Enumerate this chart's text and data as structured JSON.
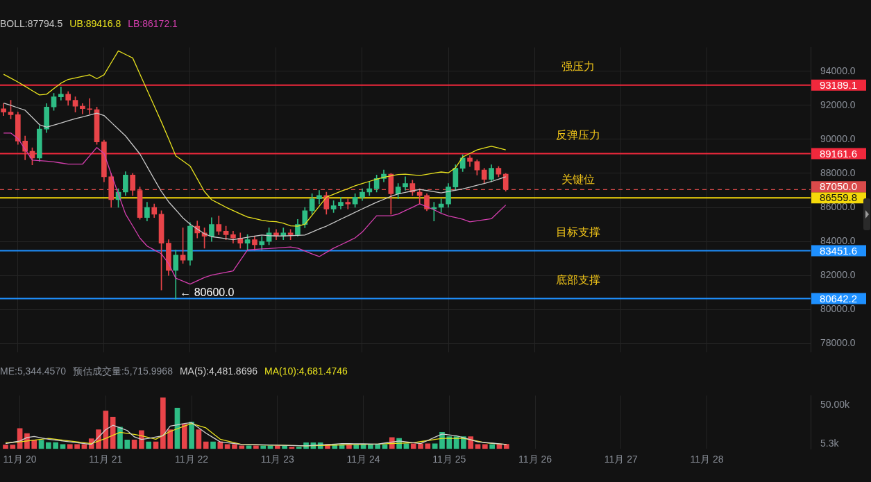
{
  "chart_data": [
    {
      "type": "candlestick",
      "legend": "top left",
      "grid": true,
      "tick_labels": "y",
      "categories": [
        null,
        null,
        null,
        null,
        null,
        null,
        null,
        null,
        null,
        null,
        null,
        null,
        null,
        null,
        null,
        null,
        null,
        null,
        null,
        null,
        null,
        null,
        null,
        null,
        null,
        null,
        null,
        null,
        null,
        null,
        null,
        null,
        null,
        null,
        null,
        null,
        null,
        null,
        null,
        null,
        null,
        null,
        null,
        null,
        null,
        null,
        null,
        null,
        null,
        null,
        null,
        null,
        null,
        null,
        null,
        null,
        null,
        null,
        null,
        null,
        null,
        null,
        null,
        null,
        null,
        null,
        null,
        null,
        null,
        null,
        null,
        null,
        null,
        null,
        null,
        null,
        null,
        null,
        null,
        null,
        null,
        null,
        null,
        null,
        null,
        null,
        null,
        null,
        null,
        null,
        null,
        null,
        null,
        null,
        null,
        null,
        null,
        null,
        null,
        null,
        null,
        null,
        null,
        null,
        null,
        null,
        null,
        null,
        null,
        null,
        null,
        null,
        null
      ],
      "ohlc": [
        [
          91800,
          92100,
          91400,
          91600
        ],
        [
          91600,
          92300,
          91200,
          91450
        ],
        [
          91450,
          91600,
          89700,
          89900
        ],
        [
          89900,
          90200,
          88800,
          89300
        ],
        [
          89300,
          89500,
          88500,
          88900
        ],
        [
          88900,
          90800,
          88700,
          90600
        ],
        [
          90600,
          92100,
          90400,
          91900
        ],
        [
          91900,
          92700,
          91700,
          92500
        ],
        [
          92500,
          93080,
          92300,
          92650
        ],
        [
          92650,
          92800,
          92000,
          92300
        ],
        [
          92300,
          92500,
          91600,
          91950
        ],
        [
          91950,
          92100,
          91500,
          91800
        ],
        [
          91800,
          92400,
          91500,
          91750
        ],
        [
          91750,
          91900,
          89700,
          89850
        ],
        [
          89850,
          89950,
          87500,
          87800
        ],
        [
          87800,
          88000,
          86000,
          86450
        ],
        [
          86450,
          87100,
          86000,
          86900
        ],
        [
          86900,
          88100,
          86700,
          87900
        ],
        [
          87900,
          88000,
          86700,
          87000
        ],
        [
          87000,
          87200,
          85300,
          85400
        ],
        [
          85400,
          86300,
          85200,
          86000
        ],
        [
          86000,
          86200,
          85400,
          85600
        ],
        [
          85600,
          85800,
          81140,
          83900
        ],
        [
          83900,
          84100,
          82000,
          82300
        ],
        [
          82300,
          83500,
          80600,
          83200
        ],
        [
          83200,
          84800,
          82700,
          82900
        ],
        [
          82900,
          85100,
          82600,
          84900
        ],
        [
          84900,
          85200,
          84200,
          84500
        ],
        [
          84500,
          84800,
          83600,
          84300
        ],
        [
          84300,
          85400,
          84000,
          85000
        ],
        [
          85000,
          85500,
          84400,
          84600
        ],
        [
          84600,
          84900,
          84100,
          84400
        ],
        [
          84400,
          84600,
          83900,
          84200
        ],
        [
          84200,
          84500,
          83600,
          83900
        ],
        [
          83900,
          84400,
          83500,
          84100
        ],
        [
          84100,
          84300,
          83500,
          83800
        ],
        [
          83800,
          84300,
          83500,
          84000
        ],
        [
          84000,
          84800,
          83800,
          84500
        ],
        [
          84500,
          84700,
          84100,
          84300
        ],
        [
          84300,
          84800,
          84100,
          84500
        ],
        [
          84500,
          84700,
          84100,
          84400
        ],
        [
          84400,
          85300,
          84300,
          85000
        ],
        [
          85000,
          86000,
          84800,
          85800
        ],
        [
          85800,
          86800,
          85600,
          86500
        ],
        [
          86500,
          87000,
          86200,
          86700
        ],
        [
          86700,
          86900,
          85600,
          85900
        ],
        [
          85900,
          86400,
          85700,
          86100
        ],
        [
          86100,
          86600,
          85900,
          86300
        ],
        [
          86300,
          86500,
          85900,
          86200
        ],
        [
          86200,
          86800,
          86000,
          86600
        ],
        [
          86600,
          87100,
          86400,
          86900
        ],
        [
          86900,
          87500,
          86700,
          87100
        ],
        [
          87100,
          87900,
          86900,
          87700
        ],
        [
          87700,
          88200,
          87500,
          87950
        ],
        [
          87950,
          88000,
          85600,
          86800
        ],
        [
          86800,
          87400,
          86500,
          87200
        ],
        [
          87200,
          87800,
          87000,
          87400
        ],
        [
          87400,
          87600,
          86700,
          86900
        ],
        [
          86900,
          87100,
          86200,
          86700
        ],
        [
          86700,
          86800,
          85800,
          85900
        ],
        [
          85900,
          86300,
          85200,
          86000
        ],
        [
          86000,
          86500,
          85700,
          86200
        ],
        [
          86200,
          87400,
          86000,
          87200
        ],
        [
          87200,
          88500,
          87000,
          88300
        ],
        [
          88300,
          89100,
          88100,
          88900
        ],
        [
          88900,
          89050,
          88400,
          88700
        ],
        [
          88700,
          88800,
          87900,
          88200
        ],
        [
          88200,
          88300,
          87400,
          87650
        ],
        [
          87650,
          88500,
          87500,
          88300
        ],
        [
          88300,
          88400,
          87800,
          87950
        ],
        [
          87950,
          88000,
          86950,
          87050
        ],
        null,
        null,
        null,
        null,
        null,
        null,
        null,
        null,
        null,
        null,
        null,
        null,
        null,
        null,
        null,
        null,
        null,
        null,
        null,
        null,
        null,
        null,
        null,
        null,
        null,
        null,
        null,
        null,
        null,
        null,
        null,
        null,
        null,
        null,
        null,
        null,
        null,
        null,
        null,
        null,
        null,
        null
      ],
      "colors": [
        "#e84449",
        "#e84449",
        "#e84449",
        "#e84449",
        "#e84449",
        "#2ebd85",
        "#2ebd85",
        "#2ebd85",
        "#2ebd85",
        "#e84449",
        "#e84449",
        "#e84449",
        "#e84449",
        "#e84449",
        "#e84449",
        "#e84449",
        "#2ebd85",
        "#2ebd85",
        "#e84449",
        "#e84449",
        "#2ebd85",
        "#e84449",
        "#e84449",
        "#e84449",
        "#2ebd85",
        "#e84449",
        "#2ebd85",
        "#e84449",
        "#e84449",
        "#2ebd85",
        "#e84449",
        "#e84449",
        "#e84449",
        "#e84449",
        "#2ebd85",
        "#e84449",
        "#2ebd85",
        "#2ebd85",
        "#e84449",
        "#2ebd85",
        "#e84449",
        "#2ebd85",
        "#2ebd85",
        "#2ebd85",
        "#2ebd85",
        "#e84449",
        "#2ebd85",
        "#2ebd85",
        "#e84449",
        "#2ebd85",
        "#2ebd85",
        "#2ebd85",
        "#2ebd85",
        "#2ebd85",
        "#e84449",
        "#2ebd85",
        "#2ebd85",
        "#e84449",
        "#e84449",
        "#e84449",
        "#2ebd85",
        "#2ebd85",
        "#2ebd85",
        "#2ebd85",
        "#2ebd85",
        "#e84449",
        "#e84449",
        "#e84449",
        "#2ebd85",
        "#e84449",
        "#e84449",
        null,
        null,
        null,
        null,
        null,
        null,
        null,
        null,
        null,
        null,
        null,
        null,
        null,
        null,
        null,
        null,
        null,
        null,
        null,
        null,
        null,
        null,
        null,
        null,
        null,
        null,
        null,
        null,
        null,
        null,
        null,
        null,
        null,
        null,
        null,
        null,
        null,
        null,
        null,
        null,
        null,
        null
      ],
      "series": [
        {
          "type": "line",
          "name": "BOLL:87794.5",
          "color": "#c8c8c8",
          "marker": "none",
          "values": [
            92130,
            92000,
            91850,
            91710,
            91290,
            90860,
            90710,
            90840,
            90960,
            91090,
            91210,
            91320,
            91430,
            91540,
            91400,
            91000,
            90600,
            90200,
            89670,
            89140,
            88400,
            87660,
            86930,
            86330,
            85860,
            85380,
            85010,
            84730,
            84450,
            84280,
            84220,
            84160,
            84100,
            84170,
            84240,
            84310,
            84380,
            84340,
            84320,
            84320,
            84340,
            84360,
            84380,
            84550,
            84730,
            84900,
            85100,
            85310,
            85510,
            85710,
            85910,
            86110,
            86300,
            86470,
            86650,
            86790,
            86880,
            86970,
            87060,
            86990,
            86920,
            86850,
            86930,
            87010,
            87090,
            87190,
            87300,
            87400,
            87520,
            87660,
            87800,
            null,
            null,
            null,
            null,
            null,
            null,
            null,
            null,
            null,
            null,
            null,
            null,
            null,
            null,
            null,
            null,
            null,
            null,
            null,
            null,
            null,
            null,
            null,
            null,
            null,
            null,
            null,
            null,
            null,
            null,
            null,
            null,
            null,
            null,
            null,
            null,
            null,
            null,
            null,
            null,
            null,
            null
          ]
        },
        {
          "type": "line",
          "name": "UB:89416.8",
          "color": "#e8e21e",
          "marker": "none",
          "values": [
            93820,
            93600,
            93370,
            93120,
            92860,
            92610,
            92650,
            92980,
            93300,
            93520,
            93610,
            93700,
            93790,
            93560,
            93790,
            94500,
            95200,
            94990,
            94780,
            93840,
            92900,
            91960,
            91020,
            90040,
            89030,
            88730,
            88430,
            87680,
            86930,
            86450,
            86230,
            86010,
            85810,
            85620,
            85440,
            85340,
            85240,
            85180,
            85160,
            85070,
            84920,
            84900,
            85010,
            85540,
            86070,
            86600,
            86770,
            86940,
            87100,
            87270,
            87400,
            87530,
            87660,
            87770,
            87850,
            87930,
            87950,
            87910,
            87870,
            87940,
            88010,
            88080,
            88030,
            88330,
            88960,
            89170,
            89380,
            89490,
            89590,
            89490,
            89380,
            null,
            null,
            null,
            null,
            null,
            null,
            null,
            null,
            null,
            null,
            null,
            null,
            null,
            null,
            null,
            null,
            null,
            null,
            null,
            null,
            null,
            null,
            null,
            null,
            null,
            null,
            null,
            null,
            null,
            null,
            null,
            null,
            null,
            null,
            null,
            null,
            null,
            null,
            null,
            null,
            null,
            null
          ]
        },
        {
          "type": "line",
          "name": "LB:86172.1",
          "color": "#d63fb0",
          "marker": "none",
          "values": [
            90370,
            90370,
            90050,
            89420,
            88780,
            88750,
            88720,
            88680,
            88610,
            88540,
            88540,
            88540,
            89030,
            89520,
            89170,
            87970,
            86790,
            85610,
            84910,
            84200,
            83730,
            83500,
            83270,
            82710,
            81840,
            81670,
            81490,
            81690,
            81880,
            82020,
            82100,
            82190,
            82270,
            82890,
            83500,
            83530,
            83560,
            83580,
            83610,
            83640,
            83670,
            83600,
            83440,
            83270,
            83110,
            83360,
            83600,
            83800,
            84000,
            84210,
            84550,
            85030,
            85510,
            85510,
            85510,
            85610,
            85810,
            86010,
            86210,
            86040,
            85860,
            85650,
            85500,
            85410,
            85300,
            85150,
            85210,
            85270,
            85330,
            85740,
            86140,
            null,
            null,
            null,
            null,
            null,
            null,
            null,
            null,
            null,
            null,
            null,
            null,
            null,
            null,
            null,
            null,
            null,
            null,
            null,
            null,
            null,
            null,
            null,
            null,
            null,
            null,
            null,
            null,
            null,
            null,
            null,
            null,
            null,
            null,
            null,
            null,
            null,
            null,
            null,
            null,
            null,
            null
          ]
        }
      ],
      "ref_lines": [
        {
          "axis": "y",
          "value": 93189.1,
          "label": "93189.1",
          "color": "#f0283c"
        },
        {
          "axis": "y",
          "value": 89161.6,
          "label": "89161.6",
          "color": "#f0283c"
        },
        {
          "axis": "y",
          "value": 87050,
          "label": "87050.0",
          "color": "#d94a4a",
          "line_style": "dashed"
        },
        {
          "axis": "y",
          "value": 86559.8,
          "label": "86559.8",
          "color": "#f5d90a"
        },
        {
          "axis": "y",
          "value": 83451.6,
          "label": "83451.6",
          "color": "#1e90ff"
        },
        {
          "axis": "y",
          "value": 80642.2,
          "label": "80642.2",
          "color": "#1e90ff"
        }
      ],
      "annotations": [
        {
          "text": "强压力",
          "y": 93189.1
        },
        {
          "text": "反弹压力",
          "y": 89161.6
        },
        {
          "text": "关键位",
          "y": 86559.8
        },
        {
          "text": "目标支撑",
          "y": 83451.6
        },
        {
          "text": "底部支撑",
          "y": 80642.2
        },
        {
          "text": "← 80600.0",
          "y": 80600
        }
      ],
      "ylim": [
        77500,
        95400
      ],
      "yticks": [
        {
          "value": 78000,
          "label": "78000.0"
        },
        {
          "value": 80000,
          "label": "80000.0"
        },
        {
          "value": 82000,
          "label": "82000.0"
        },
        {
          "value": 84000,
          "label": "84000.0"
        },
        {
          "value": 86000,
          "label": "86000.0"
        },
        {
          "value": 88000,
          "label": "88000.0"
        },
        {
          "value": 90000,
          "label": "90000.0"
        },
        {
          "value": 92000,
          "label": "92000.0"
        },
        {
          "value": 94000,
          "label": "94000.0"
        }
      ]
    },
    {
      "type": "bar",
      "legend": "top left",
      "grid": "x",
      "categories": [
        null,
        null,
        "11月 20",
        null,
        null,
        null,
        null,
        null,
        null,
        null,
        null,
        null,
        null,
        null,
        "11月 21",
        null,
        null,
        null,
        null,
        null,
        null,
        null,
        null,
        null,
        null,
        null,
        "11月 22",
        null,
        null,
        null,
        null,
        null,
        null,
        null,
        null,
        null,
        null,
        null,
        "11月 23",
        null,
        null,
        null,
        null,
        null,
        null,
        null,
        null,
        null,
        null,
        null,
        "11月 24",
        null,
        null,
        null,
        null,
        null,
        null,
        null,
        null,
        null,
        null,
        null,
        "11月 25",
        null,
        null,
        null,
        null,
        null,
        null,
        null,
        null,
        null,
        null,
        null,
        "11月 26",
        null,
        null,
        null,
        null,
        null,
        null,
        null,
        null,
        null,
        null,
        null,
        "11月 27",
        null,
        null,
        null,
        null,
        null,
        null,
        null,
        null,
        null,
        null,
        null,
        "11月 28",
        null,
        null,
        null,
        null,
        null,
        null,
        null,
        null,
        null,
        null,
        null,
        null,
        null,
        null
      ],
      "values": [
        4400,
        4400,
        23400,
        17500,
        10000,
        10000,
        7300,
        7300,
        5000,
        5000,
        5000,
        5000,
        11700,
        22000,
        43300,
        36500,
        25000,
        10200,
        10200,
        21000,
        8000,
        8000,
        58400,
        22000,
        46700,
        28000,
        30600,
        22000,
        8000,
        8000,
        8000,
        5000,
        5000,
        3500,
        3500,
        3500,
        3500,
        3500,
        3500,
        3500,
        2000,
        2000,
        7000,
        7000,
        7000,
        5000,
        5000,
        5000,
        5000,
        5000,
        5000,
        5000,
        5000,
        5000,
        13000,
        12000,
        5800,
        5800,
        5800,
        5800,
        5800,
        19000,
        14000,
        14000,
        14000,
        14000,
        5000,
        5000,
        5000,
        5000,
        5300,
        null,
        null,
        null,
        null,
        null,
        null,
        null,
        null,
        null,
        null,
        null,
        null,
        null,
        null,
        null,
        null,
        null,
        null,
        null,
        null,
        null,
        null,
        null,
        null,
        null,
        null,
        null,
        null,
        null,
        null,
        null,
        null,
        null,
        null,
        null,
        null,
        null,
        null,
        null,
        null,
        null,
        null
      ],
      "colors": [
        "#e84449",
        "#e84449",
        "#e84449",
        "#e84449",
        "#e84449",
        "#2ebd85",
        "#2ebd85",
        "#2ebd85",
        "#2ebd85",
        "#e84449",
        "#e84449",
        "#e84449",
        "#e84449",
        "#e84449",
        "#e84449",
        "#e84449",
        "#2ebd85",
        "#2ebd85",
        "#e84449",
        "#e84449",
        "#2ebd85",
        "#e84449",
        "#e84449",
        "#e84449",
        "#2ebd85",
        "#e84449",
        "#2ebd85",
        "#e84449",
        "#e84449",
        "#2ebd85",
        "#e84449",
        "#e84449",
        "#e84449",
        "#e84449",
        "#2ebd85",
        "#e84449",
        "#2ebd85",
        "#2ebd85",
        "#e84449",
        "#2ebd85",
        "#e84449",
        "#2ebd85",
        "#2ebd85",
        "#2ebd85",
        "#2ebd85",
        "#e84449",
        "#2ebd85",
        "#2ebd85",
        "#e84449",
        "#2ebd85",
        "#2ebd85",
        "#2ebd85",
        "#2ebd85",
        "#2ebd85",
        "#e84449",
        "#2ebd85",
        "#2ebd85",
        "#e84449",
        "#e84449",
        "#e84449",
        "#2ebd85",
        "#2ebd85",
        "#2ebd85",
        "#2ebd85",
        "#2ebd85",
        "#e84449",
        "#e84449",
        "#e84449",
        "#2ebd85",
        "#e84449",
        "#e84449",
        null,
        null,
        null,
        null,
        null,
        null,
        null,
        null,
        null,
        null,
        null,
        null,
        null,
        null,
        null,
        null,
        null,
        null,
        null,
        null,
        null,
        null,
        null,
        null,
        null,
        null,
        null,
        null,
        null,
        null,
        null,
        null,
        null,
        null,
        null,
        null,
        null,
        null,
        null,
        null,
        null,
        null
      ],
      "series": [
        {
          "type": "line",
          "name": "MA(5):4,481.8696",
          "color": "#d0d0d0",
          "marker": "none",
          "values": [
            6000,
            7500,
            9000,
            13000,
            14200,
            12600,
            11000,
            10000,
            9000,
            8000,
            7000,
            6000,
            5000,
            13500,
            22000,
            27000,
            24000,
            21000,
            13700,
            10700,
            12000,
            13500,
            15000,
            26000,
            27500,
            29000,
            30000,
            24000,
            18000,
            13000,
            8000,
            7000,
            6000,
            5000,
            4900,
            4800,
            4600,
            4500,
            4300,
            4100,
            3900,
            3700,
            3500,
            4000,
            4500,
            5000,
            5500,
            6000,
            5900,
            5800,
            5700,
            5600,
            5500,
            6700,
            7800,
            9000,
            8000,
            7000,
            6000,
            9700,
            13300,
            17000,
            16000,
            15000,
            12700,
            10300,
            8000,
            7300,
            6500,
            5800,
            5000,
            null,
            null,
            null,
            null,
            null,
            null,
            null,
            null,
            null,
            null,
            null,
            null,
            null,
            null,
            null,
            null,
            null,
            null,
            null,
            null,
            null,
            null,
            null,
            null,
            null,
            null,
            null,
            null,
            null,
            null,
            null,
            null,
            null,
            null,
            null,
            null,
            null,
            null,
            null,
            null,
            null,
            null
          ]
        },
        {
          "type": "line",
          "name": "MA(10):4,681.4746",
          "color": "#e8e21e",
          "marker": "none",
          "values": [
            7000,
            7500,
            8000,
            9000,
            10000,
            11000,
            12000,
            11000,
            10000,
            9000,
            8000,
            7000,
            6000,
            9000,
            12000,
            15500,
            19000,
            17800,
            16600,
            15000,
            13000,
            11000,
            15500,
            20000,
            23000,
            26000,
            29000,
            26500,
            24000,
            17500,
            11000,
            9000,
            7000,
            5000,
            4800,
            4700,
            4500,
            4300,
            4200,
            4000,
            3800,
            3700,
            3500,
            3700,
            3900,
            4100,
            4300,
            4500,
            4700,
            4900,
            5100,
            5300,
            5500,
            5800,
            6100,
            6400,
            6700,
            7000,
            8300,
            9500,
            10800,
            12000,
            12000,
            12000,
            12000,
            10300,
            8700,
            7000,
            6300,
            5700,
            5000,
            null,
            null,
            null,
            null,
            null,
            null,
            null,
            null,
            null,
            null,
            null,
            null,
            null,
            null,
            null,
            null,
            null,
            null,
            null,
            null,
            null,
            null,
            null,
            null,
            null,
            null,
            null,
            null,
            null,
            null,
            null,
            null,
            null,
            null,
            null,
            null,
            null,
            null,
            null,
            null,
            null,
            null
          ]
        }
      ],
      "annotations": [
        "ME:5,344.4570",
        "预估成交量:5,715.9968"
      ],
      "ylim": [
        0,
        61000
      ],
      "yticks": [
        {
          "value": 5300,
          "label": "5.3k"
        },
        {
          "value": 50000,
          "label": "50.00k"
        }
      ]
    }
  ]
}
